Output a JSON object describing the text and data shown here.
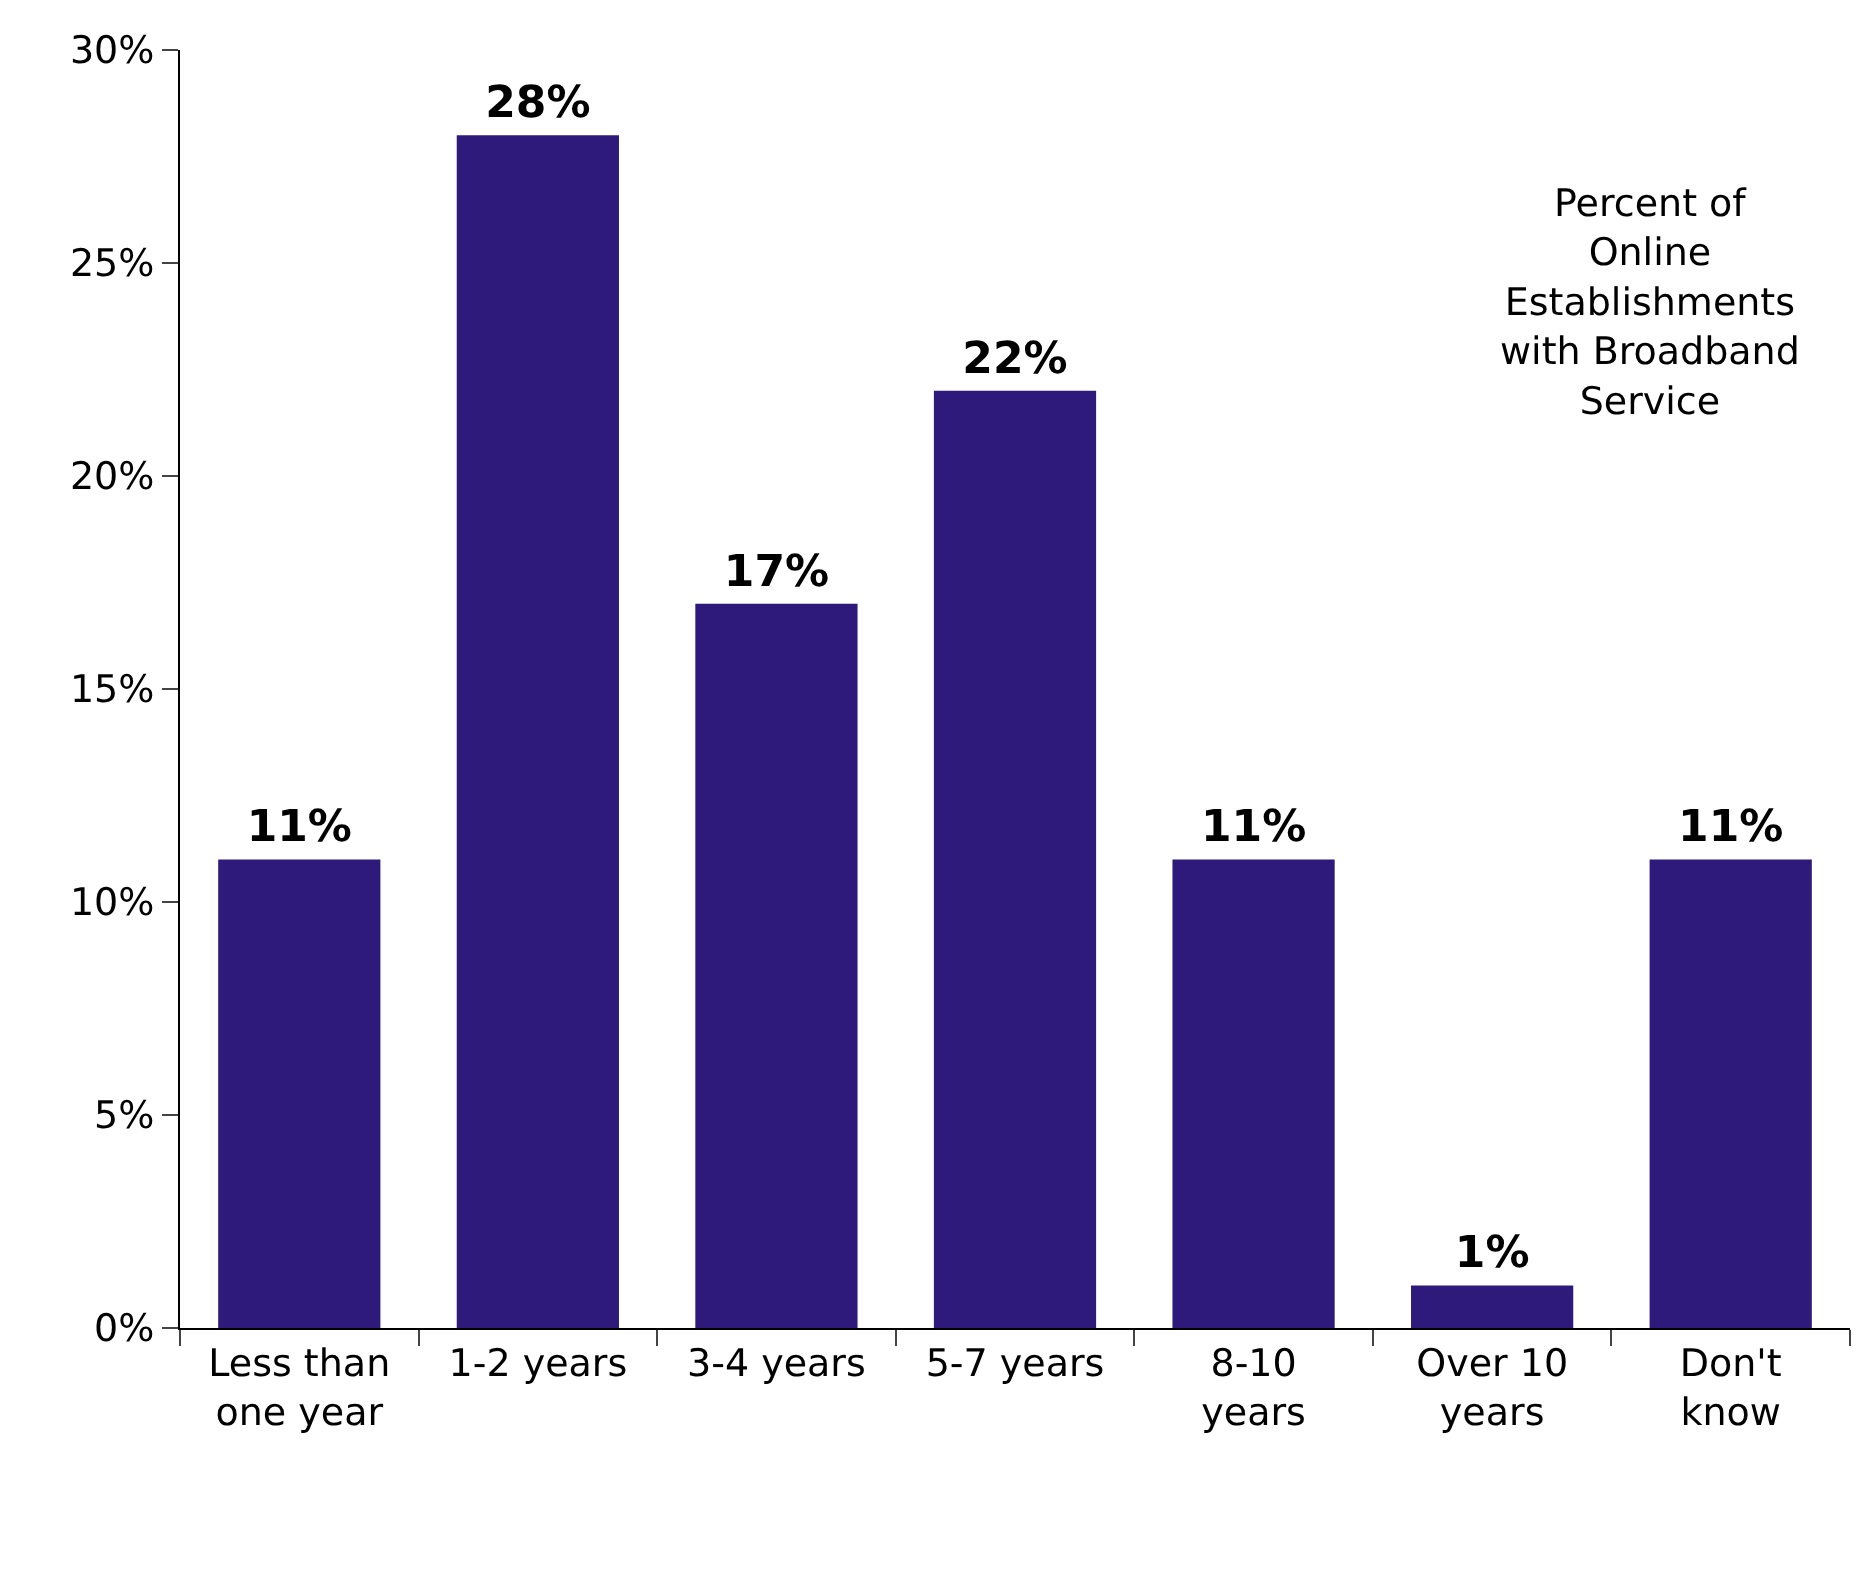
{
  "chart_data": {
    "type": "bar",
    "categories": [
      "Less than one year",
      "1-2 years",
      "3-4 years",
      "5-7 years",
      "8-10 years",
      "Over 10 years",
      "Don't know"
    ],
    "values": [
      11,
      28,
      17,
      22,
      11,
      1,
      11
    ],
    "value_labels": [
      "11%",
      "28%",
      "17%",
      "22%",
      "11%",
      "1%",
      "11%"
    ],
    "color": "#2e1a7a",
    "ylim": [
      0,
      30
    ],
    "yticks": [
      {
        "value": 0,
        "label": "0%"
      },
      {
        "value": 5,
        "label": "5%"
      },
      {
        "value": 10,
        "label": "10%"
      },
      {
        "value": 15,
        "label": "15%"
      },
      {
        "value": 20,
        "label": "20%"
      },
      {
        "value": 25,
        "label": "25%"
      },
      {
        "value": 30,
        "label": "30%"
      }
    ],
    "grid": false,
    "legend": false,
    "annotations": [
      "Percent of Online Establishments with Broadband Service"
    ]
  }
}
